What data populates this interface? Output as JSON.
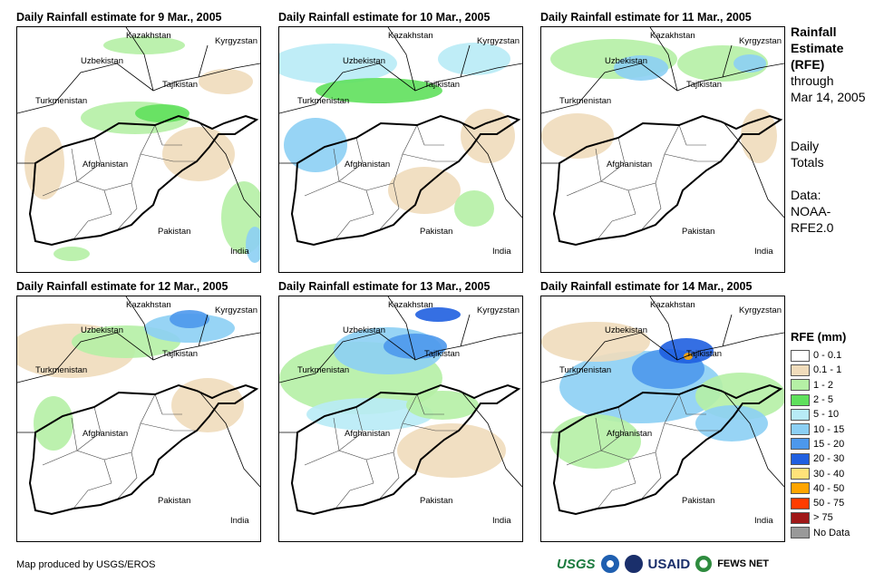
{
  "panels": [
    {
      "title": "Daily Rainfall estimate for 9 Mar., 2005",
      "day": 9
    },
    {
      "title": "Daily Rainfall estimate for 10 Mar., 2005",
      "day": 10
    },
    {
      "title": "Daily Rainfall estimate for 11 Mar., 2005",
      "day": 11
    },
    {
      "title": "Daily Rainfall estimate for 12 Mar., 2005",
      "day": 12
    },
    {
      "title": "Daily Rainfall estimate for 13 Mar., 2005",
      "day": 13
    },
    {
      "title": "Daily Rainfall estimate for 14 Mar., 2005",
      "day": 14
    }
  ],
  "map_labels": {
    "kazakhstan": "Kazakhstan",
    "kyrgyzstan": "Kyrgyzstan",
    "uzbekistan": "Uzbekistan",
    "tajikistan": "Tajikistan",
    "turkmenistan": "Turkmenistan",
    "afghanistan": "Afghanistan",
    "pakistan": "Pakistan",
    "india": "India"
  },
  "sidebar": {
    "heading_line1": "Rainfall",
    "heading_line2": "Estimate",
    "heading_line3": "(RFE)",
    "through": "through",
    "date": "Mar 14, 2005",
    "totals_line1": "Daily",
    "totals_line2": "Totals",
    "data_line1": "Data:",
    "data_line2": "NOAA-",
    "data_line3": "RFE2.0"
  },
  "legend": {
    "title": "RFE (mm)",
    "items": [
      {
        "label": "0 - 0.1",
        "color": "#ffffff"
      },
      {
        "label": "0.1 - 1",
        "color": "#f0dcbb"
      },
      {
        "label": "1 - 2",
        "color": "#b5f0a5"
      },
      {
        "label": "2 - 5",
        "color": "#5fe05c"
      },
      {
        "label": "5 - 10",
        "color": "#b8ebf6"
      },
      {
        "label": "10 - 15",
        "color": "#8ccff4"
      },
      {
        "label": "15 - 20",
        "color": "#4d98ec"
      },
      {
        "label": "20 - 30",
        "color": "#1f5fe0"
      },
      {
        "label": "30 - 40",
        "color": "#ffe27a"
      },
      {
        "label": "40 - 50",
        "color": "#ffa500"
      },
      {
        "label": "50 - 75",
        "color": "#ff3c00"
      },
      {
        "label": "> 75",
        "color": "#a01818"
      },
      {
        "label": "No Data",
        "color": "#999999"
      }
    ]
  },
  "footer": {
    "credit": "Map produced by USGS/EROS",
    "usgs": "USGS",
    "usaid": "USAID",
    "fewsnet": "FEWS NET"
  }
}
